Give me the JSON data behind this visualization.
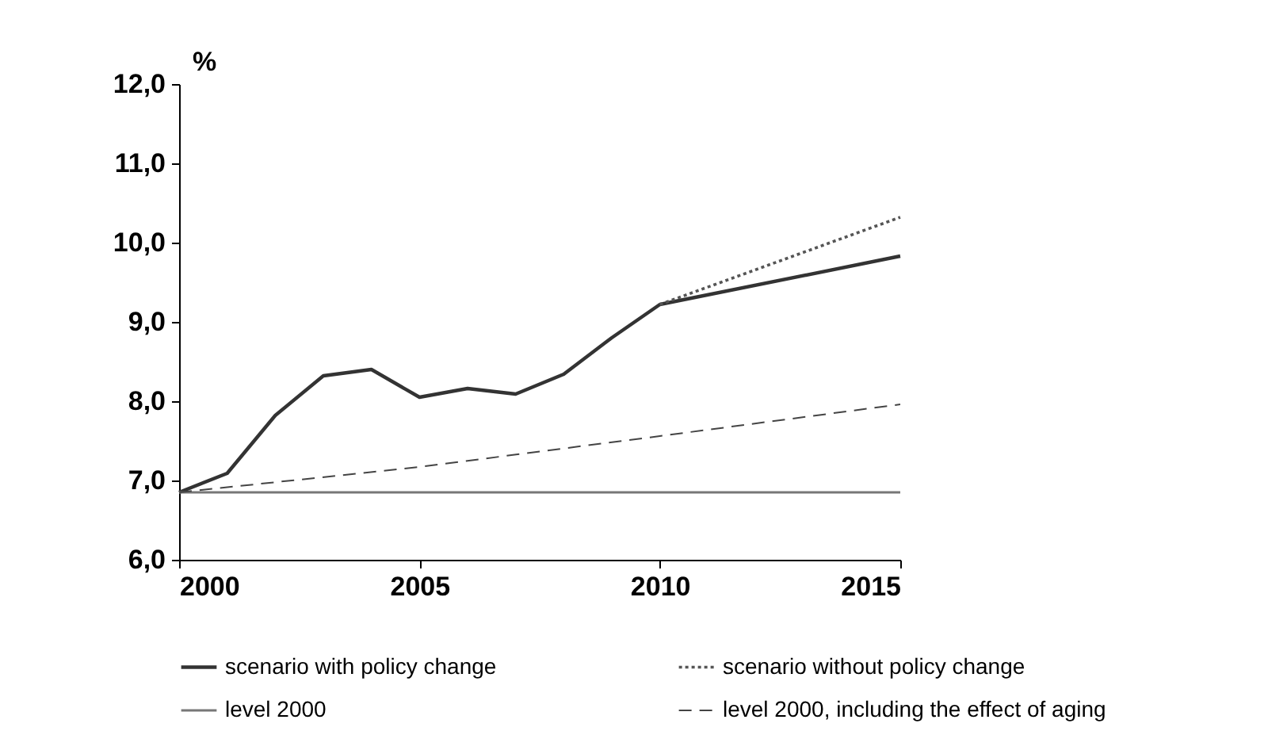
{
  "chart_data": {
    "type": "line",
    "ylabel": "%",
    "x": [
      2000,
      2001,
      2002,
      2003,
      2004,
      2005,
      2006,
      2007,
      2008,
      2009,
      2010,
      2015
    ],
    "series": [
      {
        "name": "scenario with policy change",
        "color": "#333333",
        "line_style": "solid",
        "values": [
          6.85,
          7.09,
          7.82,
          8.32,
          8.4,
          8.05,
          8.16,
          8.09,
          8.34,
          8.8,
          9.22,
          9.83
        ]
      },
      {
        "name": "scenario without policy change",
        "color": "#555555",
        "line_style": "dotted",
        "x": [
          2010,
          2015
        ],
        "values": [
          9.22,
          10.32
        ]
      },
      {
        "name": "level 2000",
        "color": "#777777",
        "line_style": "solid",
        "x": [
          2000,
          2015
        ],
        "values": [
          6.85,
          6.85
        ]
      },
      {
        "name": "level 2000,  including the effect of aging",
        "color": "#444444",
        "line_style": "dashed",
        "x": [
          2000,
          2005,
          2010,
          2015
        ],
        "values": [
          6.85,
          7.17,
          7.56,
          7.96
        ]
      }
    ],
    "xlim": [
      2000,
      2015
    ],
    "xticks": [
      2000,
      2005,
      2010,
      2015
    ],
    "ylim": [
      6,
      12
    ],
    "yticks": [
      {
        "value": 6,
        "label": "6,0"
      },
      {
        "value": 7,
        "label": "7,0"
      },
      {
        "value": 8,
        "label": "8,0"
      },
      {
        "value": 9,
        "label": "9,0"
      },
      {
        "value": 10,
        "label": "10,0"
      },
      {
        "value": 11,
        "label": "11,0"
      },
      {
        "value": 12,
        "label": "12,0"
      }
    ],
    "grid": false,
    "legend": "bottom",
    "marker": "none"
  }
}
